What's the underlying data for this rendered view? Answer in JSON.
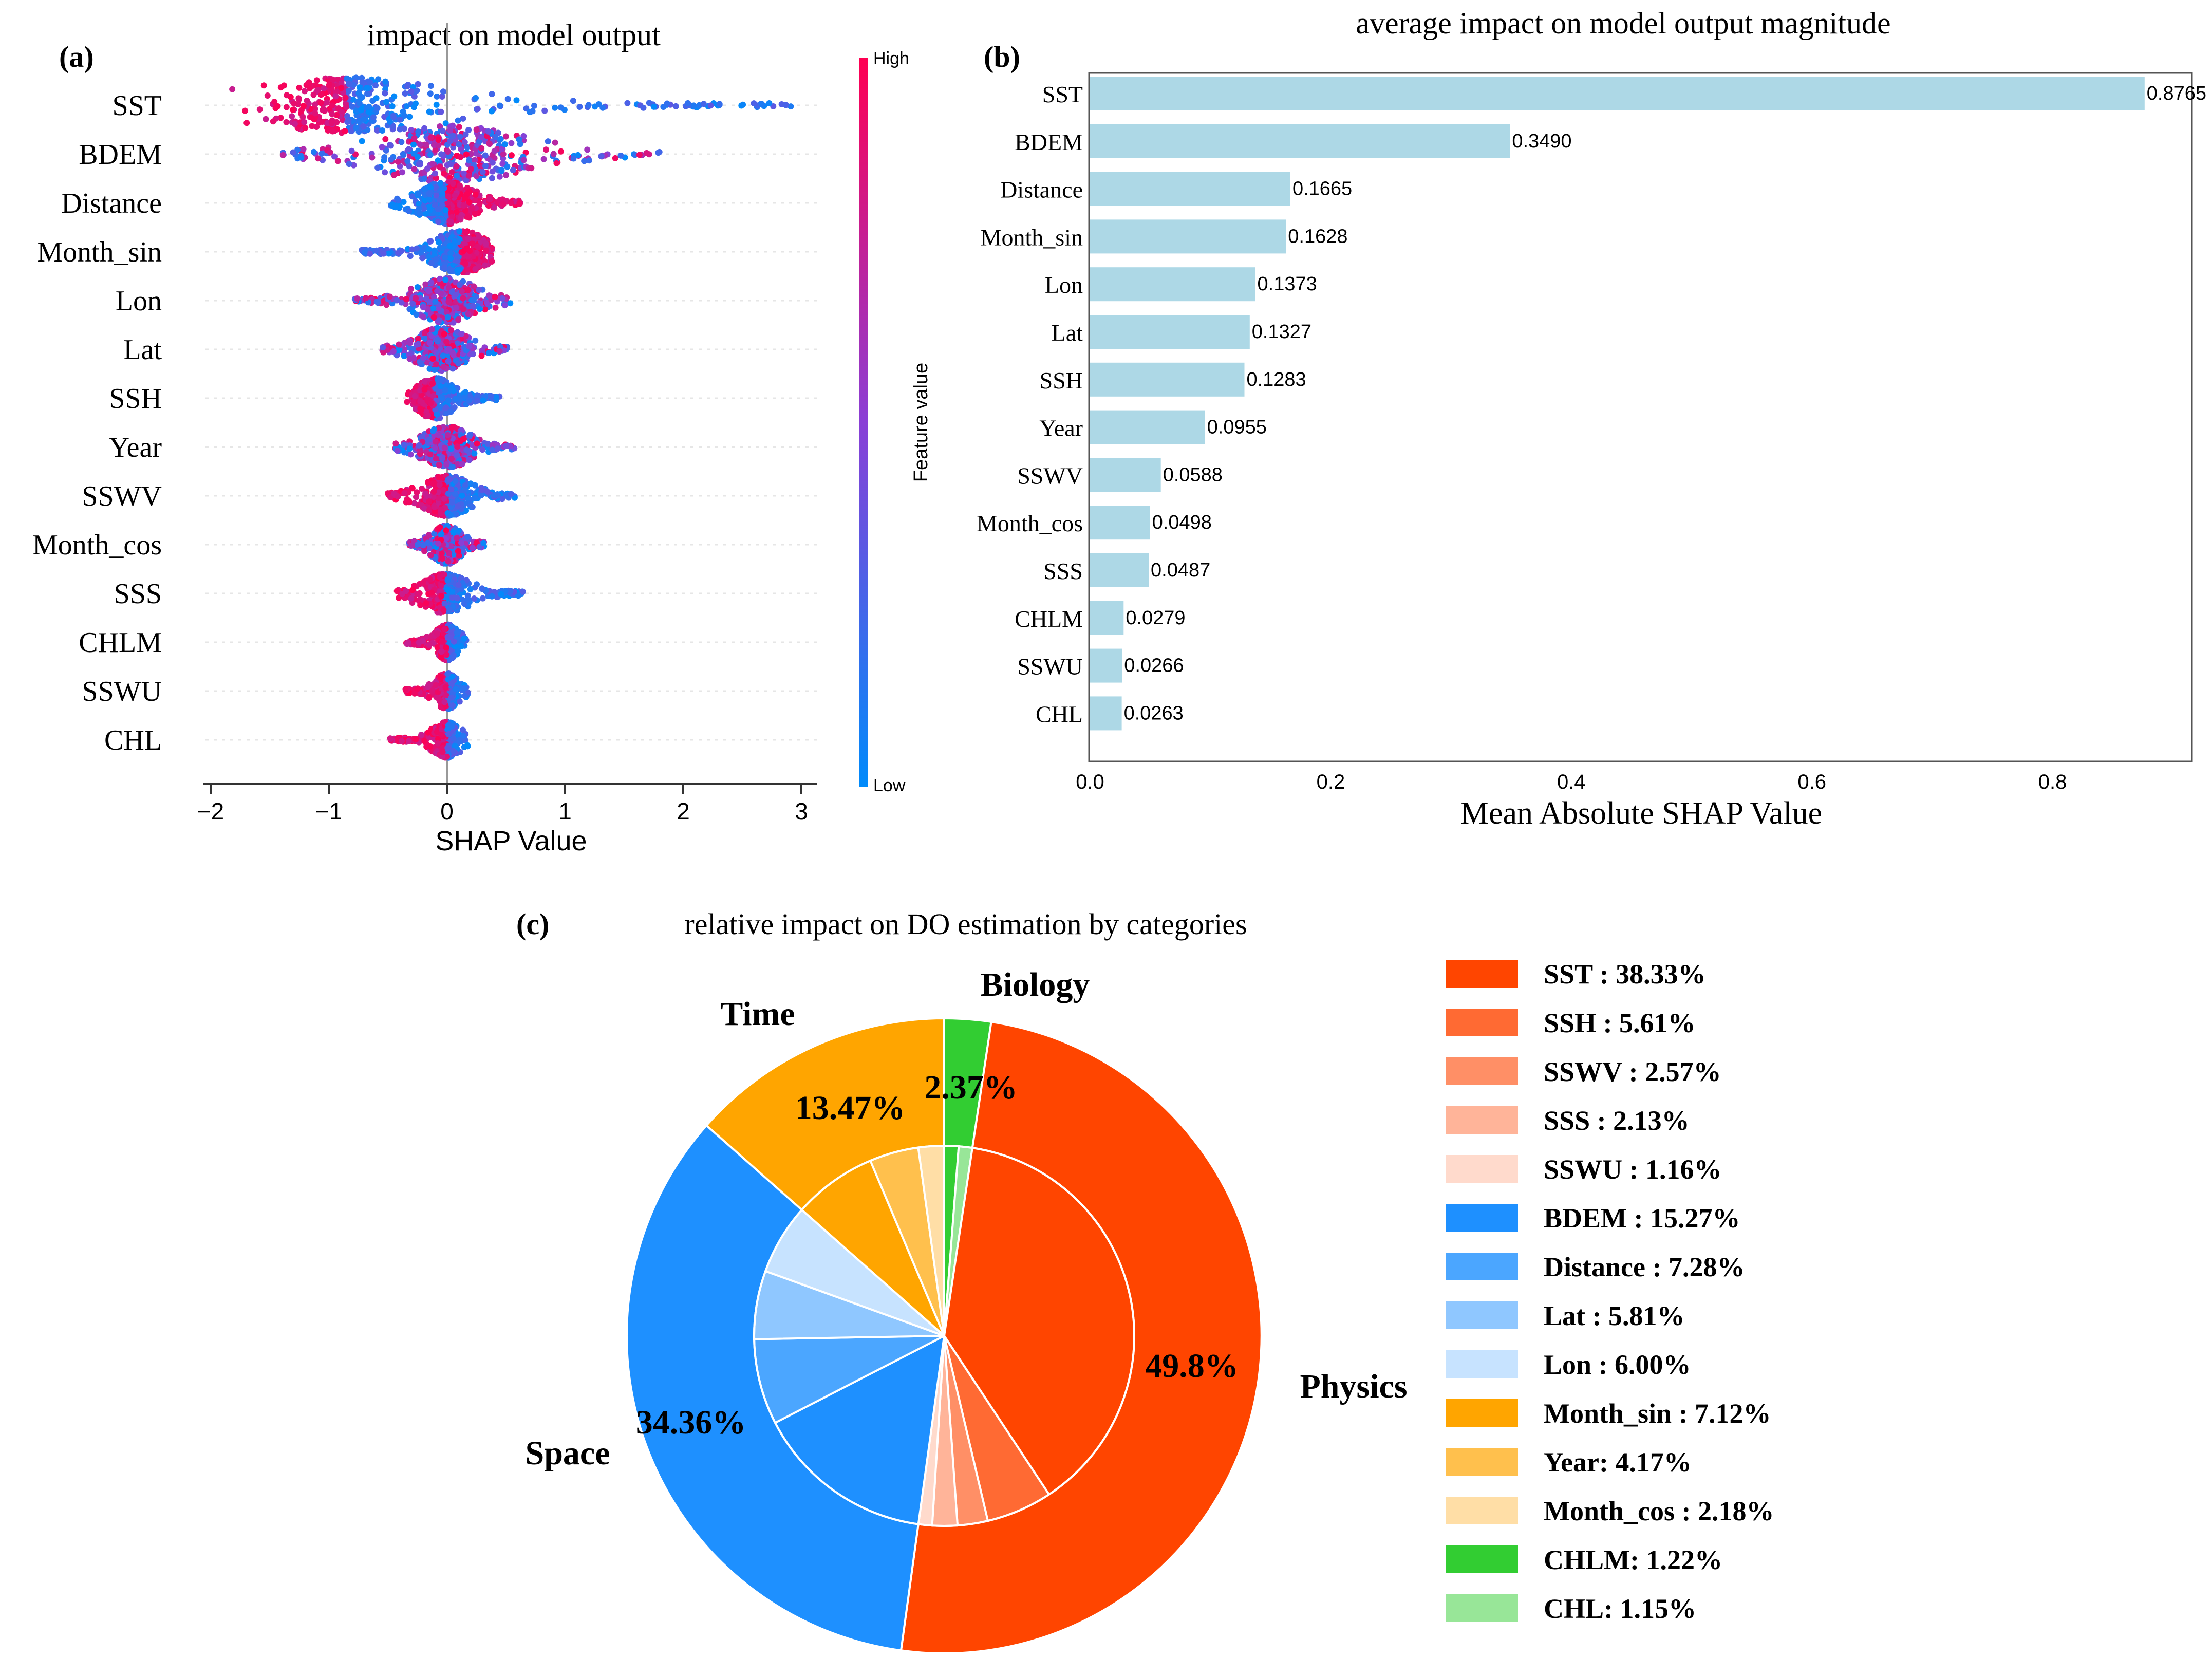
{
  "chart_data": [
    {
      "type": "scatter",
      "subtype": "beeswarm",
      "panel_label": "(a)",
      "title": "impact on model output",
      "xlabel": "SHAP Value",
      "xticks": [
        "−2",
        "−1",
        "0",
        "1",
        "2",
        "3"
      ],
      "xtick_values": [
        -2,
        -1,
        0,
        1,
        2,
        3
      ],
      "xlim": [
        -2.05,
        3.2
      ],
      "colorbar": {
        "label": "Feature value",
        "high": "High",
        "low": "Low",
        "high_color": "#ff0052",
        "mid_color": "#8a3fd6",
        "low_color": "#008bfb"
      },
      "features": [
        {
          "name": "SST",
          "min": -1.82,
          "max": 2.92,
          "peak": -0.85,
          "spread": 0.55,
          "high_side": "left"
        },
        {
          "name": "BDEM",
          "min": -1.4,
          "max": 1.8,
          "peak": 0.05,
          "spread": 0.6,
          "high_side": "mixed"
        },
        {
          "name": "Distance",
          "min": -0.48,
          "max": 0.65,
          "peak": 0.0,
          "spread": 0.25,
          "high_side": "right"
        },
        {
          "name": "Month_sin",
          "min": -0.72,
          "max": 0.38,
          "peak": 0.12,
          "spread": 0.25,
          "high_side": "right"
        },
        {
          "name": "Lon",
          "min": -0.78,
          "max": 0.55,
          "peak": 0.0,
          "spread": 0.3,
          "high_side": "mixed"
        },
        {
          "name": "Lat",
          "min": -0.58,
          "max": 0.52,
          "peak": -0.05,
          "spread": 0.25,
          "high_side": "mixed"
        },
        {
          "name": "SSH",
          "min": -0.35,
          "max": 0.45,
          "peak": -0.1,
          "spread": 0.2,
          "high_side": "left"
        },
        {
          "name": "Year",
          "min": -0.45,
          "max": 0.58,
          "peak": 0.0,
          "spread": 0.22,
          "high_side": "mixed"
        },
        {
          "name": "SSWV",
          "min": -0.5,
          "max": 0.58,
          "peak": 0.0,
          "spread": 0.2,
          "high_side": "left"
        },
        {
          "name": "Month_cos",
          "min": -0.32,
          "max": 0.32,
          "peak": 0.0,
          "spread": 0.15,
          "high_side": "mixed"
        },
        {
          "name": "SSS",
          "min": -0.45,
          "max": 0.65,
          "peak": -0.02,
          "spread": 0.15,
          "high_side": "left"
        },
        {
          "name": "CHLM",
          "min": -0.35,
          "max": 0.18,
          "peak": 0.0,
          "spread": 0.08,
          "high_side": "left"
        },
        {
          "name": "SSWU",
          "min": -0.35,
          "max": 0.18,
          "peak": 0.0,
          "spread": 0.08,
          "high_side": "left"
        },
        {
          "name": "CHL",
          "min": -0.48,
          "max": 0.18,
          "peak": 0.0,
          "spread": 0.08,
          "high_side": "left"
        }
      ]
    },
    {
      "type": "bar",
      "orientation": "horizontal",
      "panel_label": "(b)",
      "title": "average impact on model output magnitude",
      "xlabel": "Mean Absolute SHAP Value",
      "ylabel": "",
      "xlim": [
        0,
        0.91
      ],
      "xticks": [
        0.0,
        0.2,
        0.4,
        0.6,
        0.8
      ],
      "xtick_labels": [
        "0.0",
        "0.2",
        "0.4",
        "0.6",
        "0.8"
      ],
      "bar_color": "#add8e6",
      "categories": [
        "SST",
        "BDEM",
        "Distance",
        "Month_sin",
        "Lon",
        "Lat",
        "SSH",
        "Year",
        "SSWV",
        "Month_cos",
        "SSS",
        "CHLM",
        "SSWU",
        "CHL"
      ],
      "values": [
        0.8765,
        0.349,
        0.1665,
        0.1628,
        0.1373,
        0.1327,
        0.1283,
        0.0955,
        0.0588,
        0.0498,
        0.0487,
        0.0279,
        0.0266,
        0.0263
      ],
      "labels": [
        "0.8765",
        "0.3490",
        "0.1665",
        "0.1628",
        "0.1373",
        "0.1327",
        "0.1283",
        "0.0955",
        "0.0588",
        "0.0498",
        "0.0487",
        "0.0279",
        "0.0266",
        "0.0263"
      ]
    },
    {
      "type": "pie",
      "subtype": "nested",
      "panel_label": "(c)",
      "title": "relative impact on DO estimation by categories",
      "outer": [
        {
          "name": "Physics",
          "value": 49.8,
          "label": "49.8%",
          "color": "#ff4500"
        },
        {
          "name": "Space",
          "value": 34.36,
          "label": "34.36%",
          "color": "#1e90ff"
        },
        {
          "name": "Time",
          "value": 13.47,
          "label": "13.47%",
          "color": "#ffa500"
        },
        {
          "name": "Biology",
          "value": 2.37,
          "label": "2.37%",
          "color": "#32cd32"
        }
      ],
      "inner": [
        {
          "name": "SST",
          "value": 38.33,
          "legend": "SST : 38.33%",
          "color": "#ff4500"
        },
        {
          "name": "SSH",
          "value": 5.61,
          "legend": "SSH : 5.61%",
          "color": "#ff6a33"
        },
        {
          "name": "SSWV",
          "value": 2.57,
          "legend": "SSWV : 2.57%",
          "color": "#ff8f66"
        },
        {
          "name": "SSS",
          "value": 2.13,
          "legend": "SSS : 2.13%",
          "color": "#ffb499"
        },
        {
          "name": "SSWU",
          "value": 1.16,
          "legend": "SSWU : 1.16%",
          "color": "#ffdacc"
        },
        {
          "name": "BDEM",
          "value": 15.27,
          "legend": "BDEM : 15.27%",
          "color": "#1e90ff"
        },
        {
          "name": "Distance",
          "value": 7.28,
          "legend": "Distance : 7.28%",
          "color": "#4ba6ff"
        },
        {
          "name": "Lat",
          "value": 5.81,
          "legend": "Lat : 5.81%",
          "color": "#8fc7ff"
        },
        {
          "name": "Lon",
          "value": 6.0,
          "legend": "Lon : 6.00%",
          "color": "#c7e3ff"
        },
        {
          "name": "Month_sin",
          "value": 7.12,
          "legend": "Month_sin : 7.12%",
          "color": "#ffa500"
        },
        {
          "name": "Year",
          "value": 4.17,
          "legend": "Year: 4.17%",
          "color": "#ffc04d"
        },
        {
          "name": "Month_cos",
          "value": 2.18,
          "legend": "Month_cos : 2.18%",
          "color": "#ffdea6"
        },
        {
          "name": "CHLM",
          "value": 1.22,
          "legend": "CHLM: 1.22%",
          "color": "#32cd32"
        },
        {
          "name": "CHL",
          "value": 1.15,
          "legend": "CHL: 1.15%",
          "color": "#98e698"
        }
      ]
    }
  ]
}
